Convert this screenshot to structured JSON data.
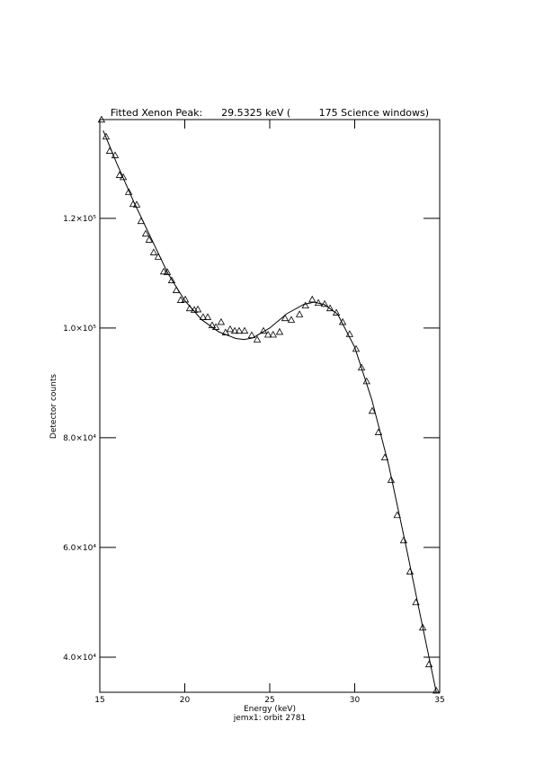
{
  "chart_data": {
    "type": "scatter",
    "title": "Fitted Xenon Peak:      29.5325 keV (         175 Science windows)",
    "x_label": "Energy (keV)",
    "subtitle": "jemx1: orbit 2781",
    "y_label": "Detector counts",
    "xlim": [
      15,
      35
    ],
    "ylim": [
      33600,
      138000
    ],
    "xticks": [
      15,
      20,
      25,
      30,
      35
    ],
    "yticks": [
      {
        "value": 40000,
        "label": "4.0×10⁴"
      },
      {
        "value": 60000,
        "label": "6.0×10⁴"
      },
      {
        "value": 80000,
        "label": "8.0×10⁴"
      },
      {
        "value": 100000,
        "label": "1.0×10⁵"
      },
      {
        "value": 120000,
        "label": "1.2×10⁵"
      }
    ],
    "series": [
      {
        "name": "data",
        "marker": "triangle",
        "color": "#000000",
        "x": [
          15.1,
          15.37,
          15.58,
          15.9,
          16.16,
          16.38,
          16.7,
          16.96,
          17.17,
          17.43,
          17.7,
          17.9,
          18.17,
          18.44,
          18.76,
          18.97,
          19.23,
          19.5,
          19.76,
          20.03,
          20.29,
          20.56,
          20.77,
          21.08,
          21.35,
          21.61,
          21.83,
          22.14,
          22.4,
          22.67,
          22.94,
          23.2,
          23.52,
          23.94,
          24.26,
          24.63,
          24.9,
          25.2,
          25.58,
          25.9,
          26.27,
          26.75,
          27.1,
          27.5,
          27.86,
          28.23,
          28.55,
          28.92,
          29.29,
          29.7,
          30.08,
          30.4,
          30.7,
          31.03,
          31.4,
          31.77,
          32.14,
          32.5,
          32.88,
          33.25,
          33.6,
          34.0,
          34.37,
          34.8
        ],
        "values": [
          138000,
          134900,
          132300,
          131500,
          127900,
          127500,
          124800,
          122600,
          122500,
          119500,
          117200,
          116100,
          113800,
          113000,
          110300,
          110200,
          108700,
          106900,
          105100,
          105200,
          103600,
          103300,
          103400,
          102000,
          102000,
          100500,
          100200,
          101100,
          99200,
          99800,
          99500,
          99500,
          99500,
          98700,
          97900,
          99500,
          98800,
          98800,
          99300,
          101800,
          101500,
          102500,
          104100,
          105200,
          104600,
          104400,
          103600,
          102800,
          101100,
          98900,
          96200,
          92800,
          90300,
          84900,
          81000,
          76400,
          72300,
          65900,
          61300,
          55600,
          50000,
          45400,
          38700,
          33900
        ]
      },
      {
        "name": "fit",
        "marker": "line",
        "color": "#000000",
        "x": [
          15.2,
          16,
          17,
          18,
          19,
          20,
          21,
          22,
          23,
          23.5,
          24,
          25,
          26,
          27,
          27.6,
          28.2,
          29,
          30,
          31,
          32,
          33,
          34,
          34.8
        ],
        "values": [
          136000,
          130000,
          123000,
          116500,
          110000,
          105000,
          101500,
          99300,
          98100,
          97900,
          98200,
          100000,
          102600,
          104300,
          104700,
          104300,
          102500,
          96500,
          87000,
          75000,
          60500,
          45500,
          33600
        ]
      }
    ]
  }
}
